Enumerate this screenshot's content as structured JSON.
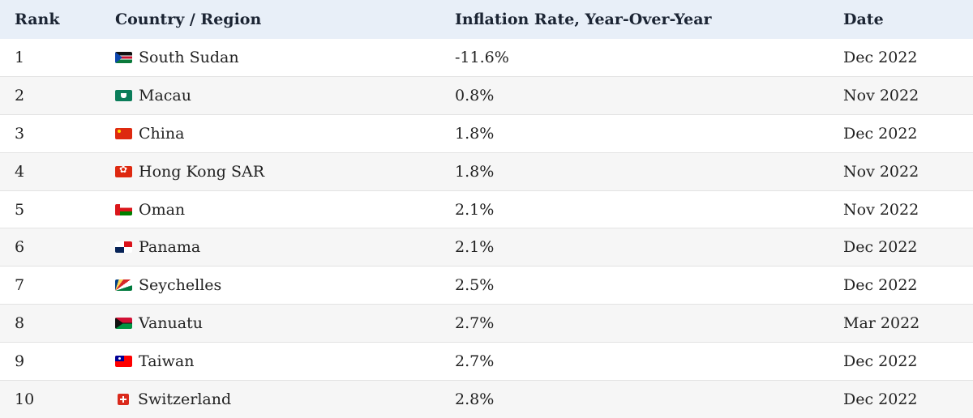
{
  "header": {
    "rank": "Rank",
    "country": "Country / Region",
    "rate": "Inflation Rate, Year-Over-Year",
    "date": "Date"
  },
  "rows": [
    {
      "rank": "1",
      "country": "South Sudan",
      "flag": "south-sudan-flag-icon",
      "rate": "-11.6%",
      "date": "Dec 2022"
    },
    {
      "rank": "2",
      "country": "Macau",
      "flag": "macau-flag-icon",
      "rate": "0.8%",
      "date": "Nov 2022"
    },
    {
      "rank": "3",
      "country": "China",
      "flag": "china-flag-icon",
      "rate": "1.8%",
      "date": "Dec 2022"
    },
    {
      "rank": "4",
      "country": "Hong Kong SAR",
      "flag": "hong-kong-flag-icon",
      "rate": "1.8%",
      "date": "Nov 2022"
    },
    {
      "rank": "5",
      "country": "Oman",
      "flag": "oman-flag-icon",
      "rate": "2.1%",
      "date": "Nov 2022"
    },
    {
      "rank": "6",
      "country": "Panama",
      "flag": "panama-flag-icon",
      "rate": "2.1%",
      "date": "Dec 2022"
    },
    {
      "rank": "7",
      "country": "Seychelles",
      "flag": "seychelles-flag-icon",
      "rate": "2.5%",
      "date": "Dec 2022"
    },
    {
      "rank": "8",
      "country": "Vanuatu",
      "flag": "vanuatu-flag-icon",
      "rate": "2.7%",
      "date": "Mar 2022"
    },
    {
      "rank": "9",
      "country": "Taiwan",
      "flag": "taiwan-flag-icon",
      "rate": "2.7%",
      "date": "Dec 2022"
    },
    {
      "rank": "10",
      "country": "Switzerland",
      "flag": "switzerland-flag-icon",
      "rate": "2.8%",
      "date": "Dec 2022"
    }
  ],
  "colors": {
    "header_bg": "#e8eff8",
    "alt_row_bg": "#f6f6f6"
  }
}
